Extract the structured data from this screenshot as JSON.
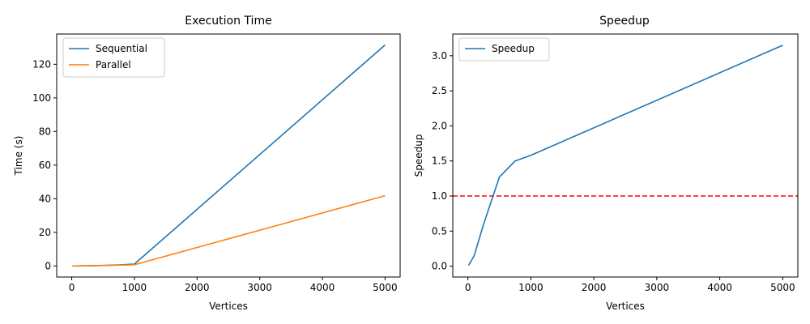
{
  "chart_data": [
    {
      "type": "line",
      "title": "Execution Time",
      "xlabel": "Vertices",
      "ylabel": "Time (s)",
      "xlim": [
        -240,
        5240
      ],
      "ylim": [
        -6.6,
        138
      ],
      "xticks": [
        0,
        1000,
        2000,
        3000,
        4000,
        5000
      ],
      "yticks": [
        0,
        20,
        40,
        60,
        80,
        100,
        120
      ],
      "grid": false,
      "legend_position": "top-left",
      "series": [
        {
          "name": "Sequential",
          "color": "#1f77b4",
          "x": [
            10,
            100,
            250,
            500,
            750,
            1000,
            5000
          ],
          "y": [
            0.0,
            0.02,
            0.1,
            0.3,
            0.6,
            1.1,
            131.5
          ]
        },
        {
          "name": "Parallel",
          "color": "#ff7f0e",
          "x": [
            10,
            100,
            250,
            500,
            750,
            1000,
            5000
          ],
          "y": [
            0.01,
            0.05,
            0.15,
            0.25,
            0.45,
            0.7,
            41.8
          ]
        }
      ]
    },
    {
      "type": "line",
      "title": "Speedup",
      "xlabel": "Vertices",
      "ylabel": "Speedup",
      "xlim": [
        -240,
        5240
      ],
      "ylim": [
        -0.155,
        3.31
      ],
      "xticks": [
        0,
        1000,
        2000,
        3000,
        4000,
        5000
      ],
      "yticks": [
        0.0,
        0.5,
        1.0,
        1.5,
        2.0,
        2.5,
        3.0
      ],
      "ytick_labels": [
        "0.0",
        "0.5",
        "1.0",
        "1.5",
        "2.0",
        "2.5",
        "3.0"
      ],
      "grid": false,
      "legend_position": "top-left",
      "series": [
        {
          "name": "Speedup",
          "color": "#1f77b4",
          "x": [
            10,
            100,
            250,
            500,
            750,
            1000,
            5000
          ],
          "y": [
            0.01,
            0.15,
            0.6,
            1.27,
            1.5,
            1.58,
            3.15
          ]
        }
      ],
      "reference_line": {
        "y": 1.0,
        "color": "#ff0000",
        "style": "dashed"
      }
    }
  ]
}
